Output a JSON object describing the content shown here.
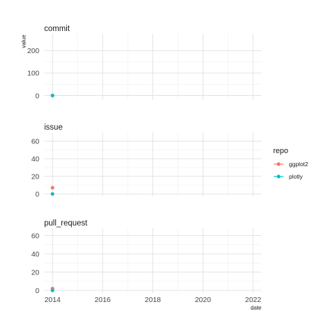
{
  "chart_data": {
    "type": "scatter",
    "xlabel": "date",
    "ylabel": "value",
    "xlim": [
      "2013-09-01",
      "2022-05-01"
    ],
    "x_ticks": [
      "2014",
      "2016",
      "2018",
      "2020",
      "2022"
    ],
    "grid": true,
    "legend": {
      "title": "repo",
      "position": "right",
      "entries": [
        {
          "name": "ggplot2",
          "color": "#F8766D"
        },
        {
          "name": "plotly",
          "color": "#00BFC4"
        }
      ]
    },
    "panels": [
      {
        "title": "commit",
        "ylim": [
          -20,
          275
        ],
        "y_ticks": [
          "0",
          "100",
          "200"
        ],
        "points": [
          {
            "repo": "ggplot2",
            "x": "2014-01-01",
            "y": 0
          },
          {
            "repo": "plotly",
            "x": "2014-01-01",
            "y": 0
          }
        ]
      },
      {
        "title": "issue",
        "ylim": [
          -3,
          70
        ],
        "y_ticks": [
          "0",
          "20",
          "40",
          "60"
        ],
        "points": [
          {
            "repo": "ggplot2",
            "x": "2014-01-01",
            "y": 7
          },
          {
            "repo": "plotly",
            "x": "2014-01-01",
            "y": 0
          }
        ]
      },
      {
        "title": "pull_request",
        "ylim": [
          -3,
          68
        ],
        "y_ticks": [
          "0",
          "20",
          "40",
          "60"
        ],
        "points": [
          {
            "repo": "ggplot2",
            "x": "2014-01-01",
            "y": 2
          },
          {
            "repo": "plotly",
            "x": "2014-01-01",
            "y": 0
          }
        ]
      }
    ]
  }
}
